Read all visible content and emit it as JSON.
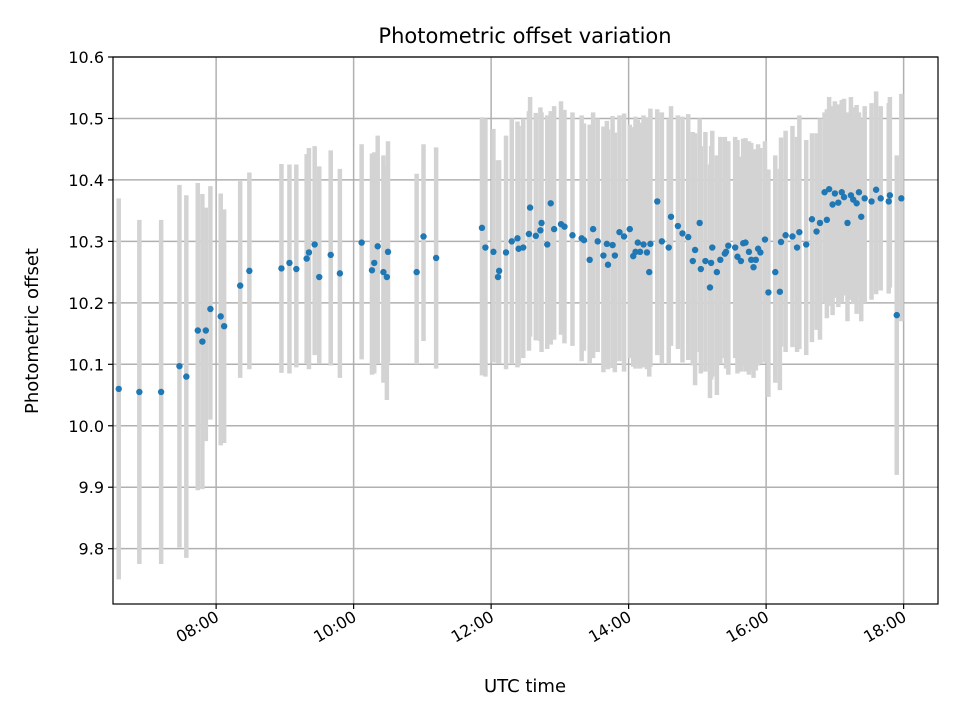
{
  "chart_data": {
    "type": "scatter",
    "title": "Photometric offset variation",
    "xlabel": "UTC time",
    "ylabel": "Photometric offset",
    "x_ticks": [
      "08:00",
      "10:00",
      "12:00",
      "14:00",
      "16:00",
      "18:00"
    ],
    "y_ticks": [
      "9.8",
      "9.9",
      "10.0",
      "10.1",
      "10.2",
      "10.3",
      "10.4",
      "10.5",
      "10.6"
    ],
    "xlim": [
      "06:30",
      "18:30"
    ],
    "ylim": [
      9.71,
      10.6
    ],
    "grid": true,
    "colors": {
      "marker": "#1f77b4",
      "errorbar": "#d3d3d3",
      "grid": "#b0b0b0"
    },
    "series": [
      {
        "x": [
          "06:35",
          "06:53",
          "07:12",
          "07:28",
          "07:34",
          "07:44",
          "07:48",
          "07:51",
          "07:55",
          "08:04",
          "08:07",
          "08:21",
          "08:29",
          "08:57",
          "09:04",
          "09:10",
          "09:19",
          "09:21",
          "09:26",
          "09:30",
          "09:40",
          "09:48",
          "10:07",
          "10:16",
          "10:18",
          "10:21",
          "10:26",
          "10:29",
          "10:30",
          "10:55",
          "11:01",
          "11:12",
          "11:52",
          "11:55",
          "12:02",
          "12:06",
          "12:07",
          "12:13",
          "12:18",
          "12:23",
          "12:24",
          "12:28",
          "12:33",
          "12:34",
          "12:39",
          "12:43",
          "12:44",
          "12:49",
          "12:52",
          "12:55",
          "13:01",
          "13:04",
          "13:11",
          "13:19",
          "13:21",
          "13:26",
          "13:29",
          "13:33",
          "13:38",
          "13:41",
          "13:42",
          "13:46",
          "13:48",
          "13:52",
          "13:56",
          "14:01",
          "14:04",
          "14:06",
          "14:08",
          "14:10",
          "14:13",
          "14:16",
          "14:18",
          "14:19",
          "14:25",
          "14:29",
          "14:35",
          "14:37",
          "14:43",
          "14:47",
          "14:52",
          "14:56",
          "14:58",
          "15:02",
          "15:03",
          "15:07",
          "15:11",
          "15:12",
          "15:13",
          "15:17",
          "15:20",
          "15:24",
          "15:25",
          "15:27",
          "15:33",
          "15:35",
          "15:38",
          "15:40",
          "15:42",
          "15:45",
          "15:47",
          "15:49",
          "15:51",
          "15:53",
          "15:55",
          "15:59",
          "16:02",
          "16:08",
          "16:12",
          "16:13",
          "16:17",
          "16:23",
          "16:27",
          "16:29",
          "16:35",
          "16:40",
          "16:44",
          "16:47",
          "16:51",
          "16:53",
          "16:55",
          "16:58",
          "17:00",
          "17:03",
          "17:06",
          "17:08",
          "17:11",
          "17:14",
          "17:16",
          "17:19",
          "17:21",
          "17:23",
          "17:26",
          "17:32",
          "17:36",
          "17:40",
          "17:47",
          "17:48",
          "17:54",
          "17:58"
        ],
        "y": [
          10.06,
          10.055,
          10.055,
          10.097,
          10.08,
          10.155,
          10.137,
          10.155,
          10.19,
          10.178,
          10.162,
          10.228,
          10.252,
          10.256,
          10.265,
          10.255,
          10.272,
          10.282,
          10.295,
          10.242,
          10.278,
          10.248,
          10.298,
          10.253,
          10.265,
          10.292,
          10.25,
          10.242,
          10.283,
          10.25,
          10.308,
          10.273,
          10.322,
          10.29,
          10.283,
          10.242,
          10.252,
          10.282,
          10.3,
          10.305,
          10.288,
          10.29,
          10.312,
          10.355,
          10.309,
          10.318,
          10.33,
          10.295,
          10.362,
          10.32,
          10.328,
          10.324,
          10.31,
          10.305,
          10.302,
          10.27,
          10.32,
          10.3,
          10.277,
          10.296,
          10.262,
          10.294,
          10.277,
          10.315,
          10.308,
          10.32,
          10.276,
          10.283,
          10.298,
          10.283,
          10.295,
          10.282,
          10.25,
          10.296,
          10.365,
          10.3,
          10.29,
          10.34,
          10.325,
          10.313,
          10.307,
          10.268,
          10.286,
          10.33,
          10.255,
          10.268,
          10.225,
          10.265,
          10.29,
          10.25,
          10.27,
          10.28,
          10.283,
          10.293,
          10.29,
          10.275,
          10.268,
          10.297,
          10.298,
          10.283,
          10.27,
          10.258,
          10.27,
          10.288,
          10.282,
          10.303,
          10.217,
          10.25,
          10.218,
          10.299,
          10.31,
          10.308,
          10.29,
          10.315,
          10.295,
          10.336,
          10.316,
          10.33,
          10.38,
          10.335,
          10.385,
          10.36,
          10.378,
          10.363,
          10.38,
          10.372,
          10.33,
          10.375,
          10.368,
          10.362,
          10.38,
          10.34,
          10.37,
          10.365,
          10.384,
          10.37,
          10.365,
          10.375,
          10.18,
          10.37
        ],
        "yerr_lo": [
          0.31,
          0.28,
          0.28,
          0.295,
          0.295,
          0.26,
          0.24,
          0.18,
          0.18,
          0.21,
          0.19,
          0.15,
          0.16,
          0.17,
          0.18,
          0.16,
          0.17,
          0.19,
          0.18,
          0.14,
          0.18,
          0.17,
          0.19,
          0.17,
          0.18,
          0.19,
          0.18,
          0.2,
          0.18,
          0.15,
          0.17,
          0.18,
          0.24,
          0.21,
          0.18,
          0.14,
          0.15,
          0.19,
          0.2,
          0.21,
          0.19,
          0.18,
          0.19,
          0.21,
          0.17,
          0.18,
          0.21,
          0.17,
          0.23,
          0.18,
          0.18,
          0.19,
          0.18,
          0.2,
          0.18,
          0.17,
          0.21,
          0.18,
          0.19,
          0.2,
          0.17,
          0.2,
          0.19,
          0.21,
          0.22,
          0.21,
          0.18,
          0.19,
          0.2,
          0.19,
          0.2,
          0.19,
          0.17,
          0.2,
          0.25,
          0.2,
          0.19,
          0.21,
          0.2,
          0.21,
          0.2,
          0.17,
          0.22,
          0.21,
          0.17,
          0.18,
          0.18,
          0.19,
          0.21,
          0.2,
          0.17,
          0.17,
          0.19,
          0.21,
          0.18,
          0.19,
          0.18,
          0.2,
          0.21,
          0.2,
          0.18,
          0.18,
          0.18,
          0.19,
          0.18,
          0.2,
          0.17,
          0.18,
          0.16,
          0.17,
          0.19,
          0.18,
          0.17,
          0.19,
          0.18,
          0.2,
          0.16,
          0.19,
          0.18,
          0.16,
          0.19,
          0.18,
          0.17,
          0.17,
          0.18,
          0.16,
          0.16,
          0.17,
          0.17,
          0.18,
          0.17,
          0.17,
          0.17,
          0.16,
          0.17,
          0.15,
          0.15,
          0.15,
          0.26,
          0.2
        ],
        "yerr_hi": [
          0.31,
          0.28,
          0.28,
          0.295,
          0.295,
          0.24,
          0.24,
          0.2,
          0.2,
          0.2,
          0.19,
          0.17,
          0.16,
          0.17,
          0.16,
          0.17,
          0.17,
          0.17,
          0.16,
          0.18,
          0.17,
          0.17,
          0.16,
          0.19,
          0.18,
          0.18,
          0.19,
          0.18,
          0.18,
          0.16,
          0.15,
          0.18,
          0.18,
          0.21,
          0.2,
          0.19,
          0.18,
          0.19,
          0.2,
          0.19,
          0.2,
          0.21,
          0.2,
          0.18,
          0.2,
          0.2,
          0.18,
          0.21,
          0.15,
          0.2,
          0.2,
          0.19,
          0.2,
          0.2,
          0.19,
          0.22,
          0.19,
          0.2,
          0.21,
          0.2,
          0.22,
          0.21,
          0.2,
          0.19,
          0.2,
          0.17,
          0.21,
          0.22,
          0.2,
          0.21,
          0.21,
          0.22,
          0.23,
          0.22,
          0.15,
          0.21,
          0.21,
          0.18,
          0.18,
          0.19,
          0.2,
          0.21,
          0.19,
          0.17,
          0.2,
          0.21,
          0.2,
          0.19,
          0.19,
          0.19,
          0.2,
          0.19,
          0.18,
          0.17,
          0.18,
          0.19,
          0.17,
          0.17,
          0.17,
          0.18,
          0.19,
          0.19,
          0.18,
          0.17,
          0.17,
          0.16,
          0.2,
          0.19,
          0.2,
          0.17,
          0.17,
          0.18,
          0.18,
          0.19,
          0.17,
          0.14,
          0.16,
          0.17,
          0.13,
          0.18,
          0.15,
          0.16,
          0.15,
          0.16,
          0.15,
          0.16,
          0.18,
          0.16,
          0.15,
          0.16,
          0.13,
          0.16,
          0.15,
          0.16,
          0.16,
          0.15,
          0.16,
          0.16,
          0.26,
          0.17
        ]
      }
    ]
  }
}
